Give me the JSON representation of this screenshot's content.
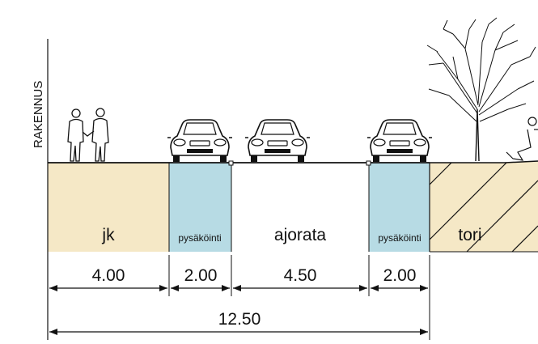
{
  "building_label": "RAKENNUS",
  "zones": [
    {
      "label": "jk",
      "width": "4.00",
      "fill": "#f5e8c6"
    },
    {
      "label": "pysäköinti",
      "width": "2.00",
      "fill": "#b7dbe4"
    },
    {
      "label": "ajorata",
      "width": "4.50",
      "fill": "#ffffff"
    },
    {
      "label": "pysäköinti",
      "width": "2.00",
      "fill": "#b7dbe4"
    },
    {
      "label": "tori",
      "fill": "#f5e8c6"
    }
  ],
  "total_width": "12.50",
  "colors": {
    "line": "#111111",
    "sand": "#f5e8c6",
    "parking": "#b7dbe4"
  },
  "icons": [
    "pedestrians-icon",
    "car-front-icon",
    "car-front-icon",
    "car-front-icon",
    "tree-icon",
    "seated-person-icon"
  ]
}
